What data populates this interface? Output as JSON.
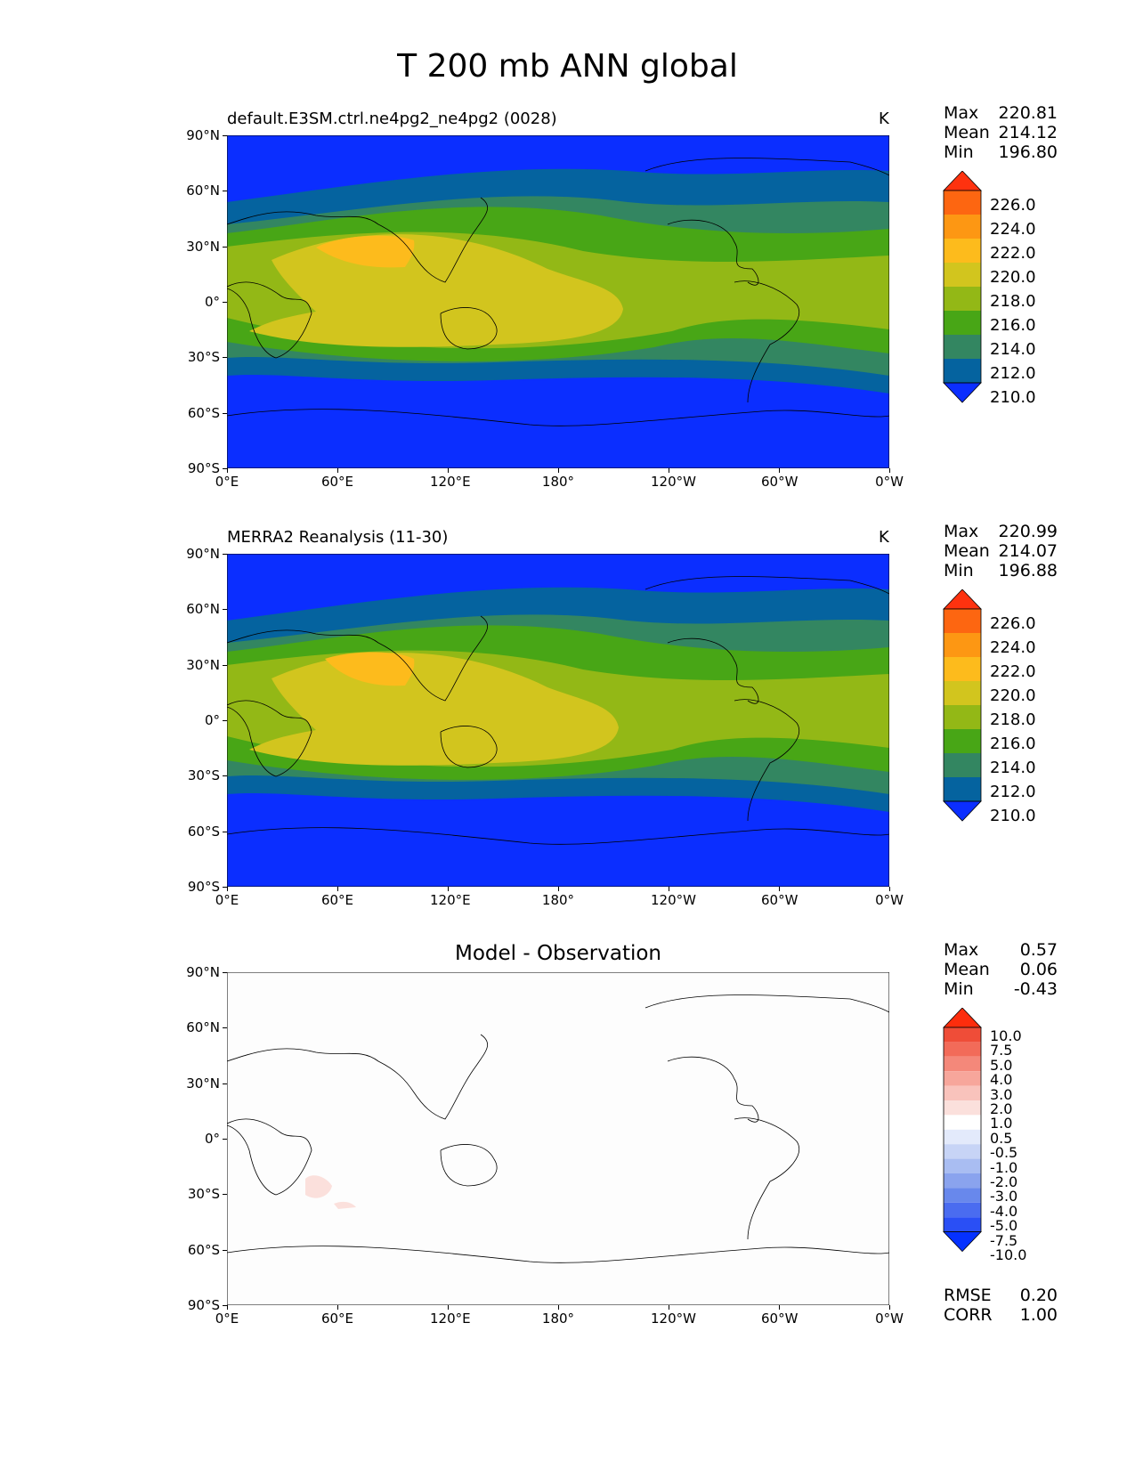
{
  "figure": {
    "title": "T 200 mb ANN global"
  },
  "panels": [
    {
      "title": "default.E3SM.ctrl.ne4pg2_ne4pg2 (0028)",
      "unit": "K",
      "stats": [
        {
          "label": "Max",
          "value": "220.81"
        },
        {
          "label": "Mean",
          "value": "214.12"
        },
        {
          "label": "Min",
          "value": "196.80"
        }
      ],
      "colorbar": {
        "labels": [
          "226.0",
          "224.0",
          "222.0",
          "220.0",
          "218.0",
          "216.0",
          "214.0",
          "212.0",
          "210.0"
        ]
      }
    },
    {
      "title": "MERRA2 Reanalysis (11-30)",
      "unit": "K",
      "stats": [
        {
          "label": "Max",
          "value": "220.99"
        },
        {
          "label": "Mean",
          "value": "214.07"
        },
        {
          "label": "Min",
          "value": "196.88"
        }
      ],
      "colorbar": {
        "labels": [
          "226.0",
          "224.0",
          "222.0",
          "220.0",
          "218.0",
          "216.0",
          "214.0",
          "212.0",
          "210.0"
        ]
      }
    },
    {
      "title": "Model - Observation",
      "unit": "",
      "stats": [
        {
          "label": "Max",
          "value": "0.57"
        },
        {
          "label": "Mean",
          "value": "0.06"
        },
        {
          "label": "Min",
          "value": "-0.43"
        }
      ],
      "colorbar": {
        "labels": [
          "10.0",
          "7.5",
          "5.0",
          "4.0",
          "3.0",
          "2.0",
          "1.0",
          "0.5",
          "-0.5",
          "-1.0",
          "-2.0",
          "-3.0",
          "-4.0",
          "-5.0",
          "-7.5",
          "-10.0"
        ]
      },
      "metrics": [
        {
          "label": "RMSE",
          "value": "0.20"
        },
        {
          "label": "CORR",
          "value": "1.00"
        }
      ]
    }
  ],
  "axes": {
    "xticks": [
      "0°E",
      "60°E",
      "120°E",
      "180°",
      "120°W",
      "60°W",
      "0°W"
    ],
    "yticks": [
      "90°N",
      "60°N",
      "30°N",
      "0°",
      "30°S",
      "60°S",
      "90°S"
    ]
  },
  "colors": {
    "abs_levels": [
      "#0b2eff",
      "#05639f",
      "#338661",
      "#48a616",
      "#93b816",
      "#d2c51e",
      "#fdbb1c",
      "#fd9713",
      "#fd6611",
      "#fe320f"
    ],
    "diff_levels": [
      "#0531ff",
      "#2a4ff5",
      "#4a6cf0",
      "#6888ec",
      "#8aa3ee",
      "#a9bdf2",
      "#c7d4f6",
      "#e3eafb",
      "#ffffff",
      "#fbe0dc",
      "#f9c3bc",
      "#f7a69b",
      "#f4887a",
      "#f26b59",
      "#ef4d38",
      "#fd2d0d"
    ]
  },
  "chart_data": [
    {
      "type": "heatmap",
      "title": "default.E3SM.ctrl.ne4pg2_ne4pg2 (0028)",
      "xlabel": "",
      "ylabel": "",
      "units": "K",
      "xlim": [
        0,
        360
      ],
      "ylim": [
        -90,
        90
      ],
      "levels": [
        208,
        210,
        212,
        214,
        216,
        218,
        220,
        222,
        224,
        226
      ],
      "stats": {
        "max": 220.81,
        "mean": 214.12,
        "min": 196.8
      }
    },
    {
      "type": "heatmap",
      "title": "MERRA2 Reanalysis (11-30)",
      "xlabel": "",
      "ylabel": "",
      "units": "K",
      "xlim": [
        0,
        360
      ],
      "ylim": [
        -90,
        90
      ],
      "levels": [
        208,
        210,
        212,
        214,
        216,
        218,
        220,
        222,
        224,
        226
      ],
      "stats": {
        "max": 220.99,
        "mean": 214.07,
        "min": 196.88
      }
    },
    {
      "type": "heatmap",
      "title": "Model - Observation",
      "xlabel": "",
      "ylabel": "",
      "xlim": [
        0,
        360
      ],
      "ylim": [
        -90,
        90
      ],
      "levels": [
        -10.0,
        -7.5,
        -5.0,
        -4.0,
        -3.0,
        -2.0,
        -1.0,
        -0.5,
        0.5,
        1.0,
        2.0,
        3.0,
        4.0,
        5.0,
        7.5,
        10.0
      ],
      "stats": {
        "max": 0.57,
        "mean": 0.06,
        "min": -0.43
      },
      "rmse": 0.2,
      "corr": 1.0
    }
  ]
}
